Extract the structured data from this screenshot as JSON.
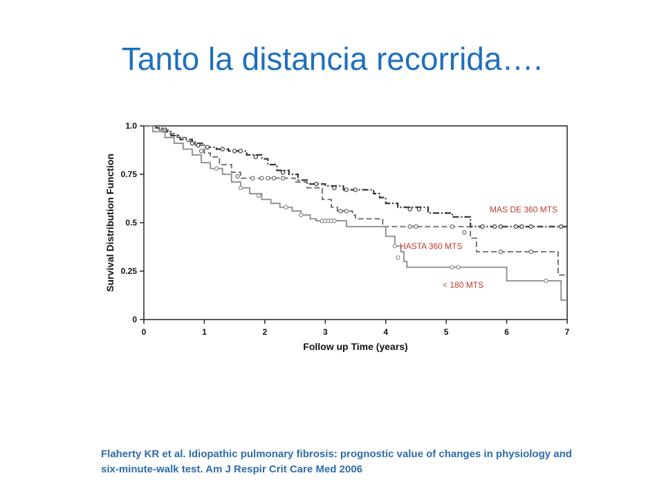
{
  "slide": {
    "title": "Tanto la distancia recorrida….",
    "citation_line1": "Flaherty KR et al. Idiopathic pulmonary fibrosis: prognostic value of changes in physiology and",
    "citation_line2": "six-minute-walk test. Am J Respir Crit Care Med 2006"
  },
  "chart_data": {
    "type": "line",
    "title": "",
    "xlabel": "Follow up Time (years)",
    "ylabel": "Survival Distribution Function",
    "xlim": [
      0,
      7
    ],
    "ylim": [
      0,
      1.0
    ],
    "x_ticks": [
      0,
      1,
      2,
      3,
      4,
      5,
      6,
      7
    ],
    "y_ticks": [
      0,
      0.25,
      0.5,
      0.75,
      1.0
    ],
    "y_tick_labels": [
      "0",
      "0.25",
      "0.5",
      "0.75",
      "1.0"
    ],
    "grid": false,
    "legend": "none",
    "series": [
      {
        "name": "MAS DE 360 MTS",
        "style": "dashdot",
        "color": "#333333",
        "label_color": "#c0392b",
        "steps": [
          [
            0,
            1.0
          ],
          [
            0.2,
            0.99
          ],
          [
            0.3,
            0.97
          ],
          [
            0.45,
            0.95
          ],
          [
            0.6,
            0.93
          ],
          [
            0.8,
            0.91
          ],
          [
            1.0,
            0.89
          ],
          [
            1.2,
            0.88
          ],
          [
            1.4,
            0.87
          ],
          [
            1.7,
            0.85
          ],
          [
            1.95,
            0.83
          ],
          [
            2.05,
            0.8
          ],
          [
            2.2,
            0.77
          ],
          [
            2.4,
            0.75
          ],
          [
            2.55,
            0.72
          ],
          [
            2.7,
            0.7
          ],
          [
            3.0,
            0.69
          ],
          [
            3.3,
            0.67
          ],
          [
            3.8,
            0.65
          ],
          [
            3.9,
            0.63
          ],
          [
            4.0,
            0.6
          ],
          [
            4.2,
            0.58
          ],
          [
            4.7,
            0.55
          ],
          [
            5.1,
            0.53
          ],
          [
            5.4,
            0.48
          ],
          [
            7.0,
            0.48
          ]
        ],
        "censors": [
          [
            0.35,
            0.98
          ],
          [
            0.8,
            0.91
          ],
          [
            0.9,
            0.9
          ],
          [
            1.05,
            0.89
          ],
          [
            1.3,
            0.88
          ],
          [
            1.5,
            0.87
          ],
          [
            1.6,
            0.87
          ],
          [
            1.85,
            0.84
          ],
          [
            2.3,
            0.76
          ],
          [
            2.85,
            0.7
          ],
          [
            3.15,
            0.68
          ],
          [
            3.35,
            0.67
          ],
          [
            3.5,
            0.67
          ],
          [
            4.4,
            0.57
          ],
          [
            4.55,
            0.57
          ],
          [
            5.6,
            0.48
          ],
          [
            5.8,
            0.48
          ],
          [
            5.9,
            0.48
          ],
          [
            6.15,
            0.48
          ],
          [
            6.25,
            0.48
          ],
          [
            6.4,
            0.48
          ],
          [
            6.9,
            0.48
          ]
        ]
      },
      {
        "name": "HASTA 360 MTS",
        "style": "dashed",
        "color": "#666666",
        "label_color": "#c0392b",
        "steps": [
          [
            0,
            1.0
          ],
          [
            0.25,
            0.98
          ],
          [
            0.4,
            0.96
          ],
          [
            0.55,
            0.94
          ],
          [
            0.7,
            0.92
          ],
          [
            0.85,
            0.9
          ],
          [
            1.0,
            0.86
          ],
          [
            1.1,
            0.84
          ],
          [
            1.25,
            0.8
          ],
          [
            1.45,
            0.76
          ],
          [
            1.6,
            0.73
          ],
          [
            2.0,
            0.73
          ],
          [
            2.5,
            0.71
          ],
          [
            2.7,
            0.68
          ],
          [
            2.95,
            0.62
          ],
          [
            3.1,
            0.58
          ],
          [
            3.2,
            0.56
          ],
          [
            3.45,
            0.54
          ],
          [
            3.5,
            0.52
          ],
          [
            3.9,
            0.52
          ],
          [
            3.95,
            0.48
          ],
          [
            5.3,
            0.48
          ],
          [
            5.4,
            0.42
          ],
          [
            5.5,
            0.35
          ],
          [
            6.8,
            0.35
          ],
          [
            6.85,
            0.23
          ],
          [
            7.0,
            0.23
          ]
        ],
        "censors": [
          [
            0.95,
            0.87
          ],
          [
            1.55,
            0.74
          ],
          [
            1.8,
            0.73
          ],
          [
            1.95,
            0.73
          ],
          [
            2.05,
            0.73
          ],
          [
            2.15,
            0.73
          ],
          [
            2.3,
            0.73
          ],
          [
            3.25,
            0.56
          ],
          [
            3.35,
            0.56
          ],
          [
            4.4,
            0.48
          ],
          [
            4.5,
            0.48
          ],
          [
            5.1,
            0.48
          ],
          [
            5.3,
            0.45
          ],
          [
            5.9,
            0.35
          ],
          [
            6.4,
            0.35
          ]
        ]
      },
      {
        "name": "< 180 MTS",
        "style": "solid",
        "color": "#888888",
        "label_color": "#c0392b",
        "steps": [
          [
            0,
            1.0
          ],
          [
            0.15,
            0.97
          ],
          [
            0.35,
            0.94
          ],
          [
            0.5,
            0.91
          ],
          [
            0.65,
            0.88
          ],
          [
            0.8,
            0.85
          ],
          [
            0.95,
            0.81
          ],
          [
            1.1,
            0.78
          ],
          [
            1.3,
            0.75
          ],
          [
            1.45,
            0.71
          ],
          [
            1.6,
            0.68
          ],
          [
            1.75,
            0.65
          ],
          [
            1.95,
            0.62
          ],
          [
            2.1,
            0.6
          ],
          [
            2.25,
            0.58
          ],
          [
            2.45,
            0.56
          ],
          [
            2.6,
            0.54
          ],
          [
            2.75,
            0.52
          ],
          [
            2.85,
            0.51
          ],
          [
            3.35,
            0.48
          ],
          [
            4.0,
            0.43
          ],
          [
            4.15,
            0.38
          ],
          [
            4.25,
            0.35
          ],
          [
            4.3,
            0.3
          ],
          [
            4.35,
            0.27
          ],
          [
            6.0,
            0.2
          ],
          [
            6.85,
            0.2
          ],
          [
            6.9,
            0.1
          ],
          [
            7.0,
            0.1
          ]
        ],
        "censors": [
          [
            1.2,
            0.78
          ],
          [
            1.6,
            0.68
          ],
          [
            1.9,
            0.64
          ],
          [
            2.35,
            0.58
          ],
          [
            2.6,
            0.54
          ],
          [
            2.95,
            0.51
          ],
          [
            3.0,
            0.51
          ],
          [
            3.05,
            0.51
          ],
          [
            3.1,
            0.51
          ],
          [
            3.15,
            0.51
          ],
          [
            4.15,
            0.38
          ],
          [
            4.2,
            0.32
          ],
          [
            5.1,
            0.27
          ],
          [
            5.2,
            0.27
          ],
          [
            6.65,
            0.2
          ]
        ]
      }
    ]
  }
}
